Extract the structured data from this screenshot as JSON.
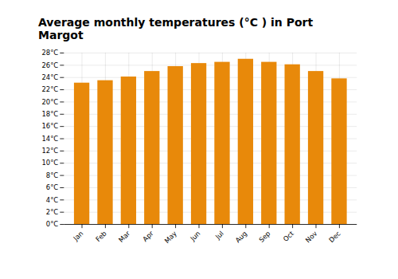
{
  "chart_data": {
    "type": "bar",
    "title": "Average monthly temperatures (°C ) in Port Margot",
    "categories": [
      "Jan",
      "Feb",
      "Mar",
      "Apr",
      "May",
      "Jun",
      "Jul",
      "Aug",
      "Sep",
      "Oct",
      "Nov",
      "Dec"
    ],
    "values": [
      23.1,
      23.5,
      24.1,
      25.0,
      25.8,
      26.3,
      26.5,
      27.0,
      26.5,
      26.1,
      25.0,
      23.8
    ],
    "color": "#E8890A",
    "ylim": [
      0,
      28
    ],
    "yticks": [
      {
        "value": 0,
        "label": "0°C"
      },
      {
        "value": 2,
        "label": "2°C"
      },
      {
        "value": 4,
        "label": "4°C"
      },
      {
        "value": 6,
        "label": "6°C"
      },
      {
        "value": 8,
        "label": "8°C"
      },
      {
        "value": 10,
        "label": "10°C"
      },
      {
        "value": 12,
        "label": "12°C"
      },
      {
        "value": 14,
        "label": "14°C"
      },
      {
        "value": 16,
        "label": "16°C"
      },
      {
        "value": 18,
        "label": "18°C"
      },
      {
        "value": 20,
        "label": "20°C"
      },
      {
        "value": 22,
        "label": "22°C"
      },
      {
        "value": 24,
        "label": "24°C"
      },
      {
        "value": 26,
        "label": "26°C"
      },
      {
        "value": 28,
        "label": "28°C"
      }
    ],
    "grid": true
  }
}
